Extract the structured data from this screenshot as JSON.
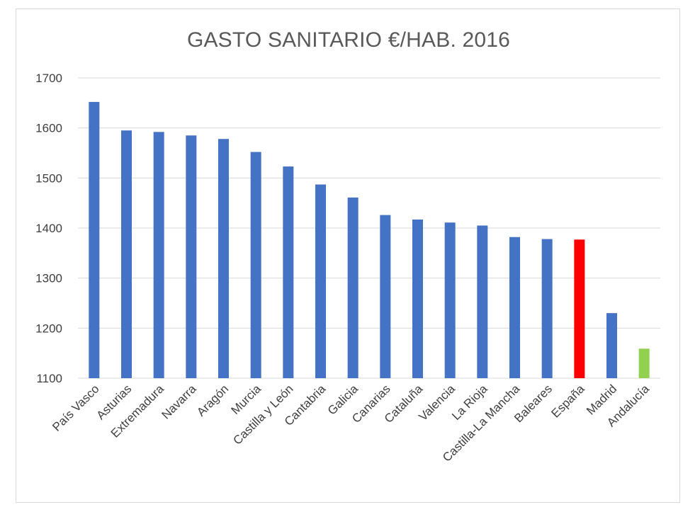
{
  "chart_data": {
    "type": "bar",
    "title": "GASTO SANITARIO €/HAB. 2016",
    "xlabel": "",
    "ylabel": "",
    "ylim": [
      1100,
      1700
    ],
    "yticks": [
      1100,
      1200,
      1300,
      1400,
      1500,
      1600,
      1700
    ],
    "grid": true,
    "categories": [
      "País Vasco",
      "Asturias",
      "Extremadura",
      "Navarra",
      "Aragón",
      "Murcia",
      "Castilla y León",
      "Cantabria",
      "Galicia",
      "Canarias",
      "Cataluña",
      "Valencia",
      "La Rioja",
      "Castilla-La Mancha",
      "Baleares",
      "España",
      "Madrid",
      "Andalucía"
    ],
    "values": [
      1652,
      1595,
      1592,
      1585,
      1578,
      1552,
      1523,
      1487,
      1461,
      1426,
      1417,
      1411,
      1405,
      1382,
      1378,
      1377,
      1230,
      1159
    ],
    "colors": [
      "#4472c4",
      "#4472c4",
      "#4472c4",
      "#4472c4",
      "#4472c4",
      "#4472c4",
      "#4472c4",
      "#4472c4",
      "#4472c4",
      "#4472c4",
      "#4472c4",
      "#4472c4",
      "#4472c4",
      "#4472c4",
      "#4472c4",
      "#ff0000",
      "#4472c4",
      "#92d050"
    ],
    "gridline_color": "#d9d9d9"
  }
}
